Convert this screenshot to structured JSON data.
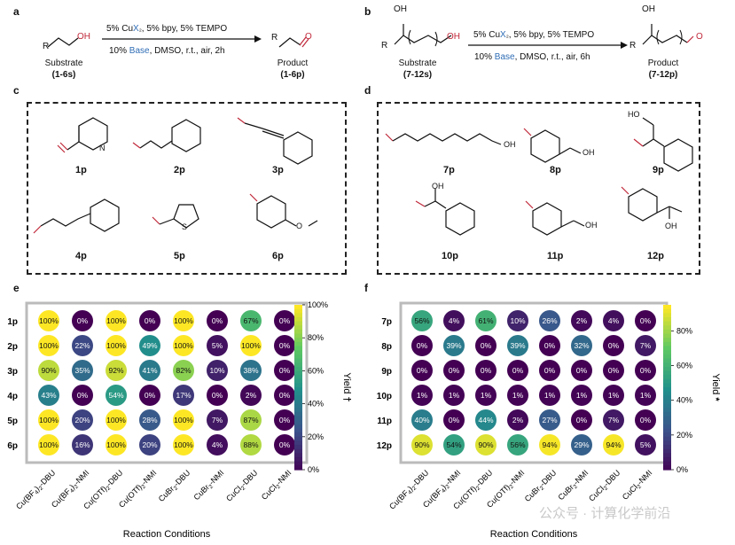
{
  "panels": {
    "a": "a",
    "b": "b",
    "c": "c",
    "d": "d",
    "e": "e",
    "f": "f"
  },
  "scheme_a": {
    "conditions_top": [
      "5% Cu",
      "X",
      "₂",
      ", 5% bpy, 5% TEMPO"
    ],
    "conditions_bottom": [
      "10% ",
      "Base",
      ", DMSO, r.t., air, 2h"
    ],
    "substrate_label": "Substrate",
    "substrate_range": "(1-6s)",
    "product_label": "Product",
    "product_range": "(1-6p)",
    "atom_R": "R",
    "atom_OH": "OH",
    "atom_O": "O"
  },
  "scheme_b": {
    "conditions_top": [
      "5% Cu",
      "X",
      "₂",
      ", 5% bpy, 5% TEMPO"
    ],
    "conditions_bottom": [
      "10% ",
      "Base",
      ", DMSO, r.t., air, 6h"
    ],
    "substrate_label": "Substrate",
    "substrate_range": "(7-12s)",
    "product_label": "Product",
    "product_range": "(7-12p)",
    "atom_R": "R",
    "atom_OH": "OH",
    "atom_O": "O"
  },
  "compounds_c": [
    "1p",
    "2p",
    "3p",
    "4p",
    "5p",
    "6p"
  ],
  "compounds_d": [
    "7p",
    "8p",
    "9p",
    "10p",
    "11p",
    "12p"
  ],
  "atoms": {
    "N": "N",
    "S": "S",
    "O": "O",
    "OH": "OH",
    "HO": "HO"
  },
  "colorscale": [
    "#440154",
    "#3b528b",
    "#21918c",
    "#5ec962",
    "#fde725"
  ],
  "chart_data": [
    {
      "type": "heatmap",
      "panel": "e",
      "rows": [
        "1p",
        "2p",
        "3p",
        "4p",
        "5p",
        "6p"
      ],
      "columns": [
        "Cu(BF4)2-DBU",
        "Cu(BF4)2-NMI",
        "Cu(OTf)2-DBU",
        "Cu(OTf)2-NMI",
        "CuBr2-DBU",
        "CuBr2-NMI",
        "CuCl2-DBU",
        "CuCl2-NMI"
      ],
      "values": [
        [
          100,
          0,
          100,
          0,
          100,
          0,
          67,
          0
        ],
        [
          100,
          22,
          100,
          49,
          100,
          5,
          100,
          0
        ],
        [
          90,
          35,
          92,
          41,
          82,
          10,
          38,
          0
        ],
        [
          43,
          0,
          54,
          0,
          17,
          0,
          2,
          0
        ],
        [
          100,
          20,
          100,
          28,
          100,
          7,
          87,
          0
        ],
        [
          100,
          16,
          100,
          20,
          100,
          4,
          88,
          0
        ]
      ],
      "xlabel": "Reaction Conditions",
      "colorbar_label": "Yield",
      "colorbar_mark": "†",
      "colorbar_range": [
        0,
        100
      ],
      "colorbar_ticks": [
        "100%",
        "80%",
        "60%",
        "40%",
        "20%",
        "0%"
      ]
    },
    {
      "type": "heatmap",
      "panel": "f",
      "rows": [
        "7p",
        "8p",
        "9p",
        "10p",
        "11p",
        "12p"
      ],
      "columns": [
        "Cu(BF4)2-DBU",
        "Cu(BF4)2-NMI",
        "Cu(OTf)2-DBU",
        "Cu(OTf)2-NMI",
        "CuBr2-DBU",
        "CuBr2-NMI",
        "CuCl2-DBU",
        "CuCl2-NMI"
      ],
      "values": [
        [
          56,
          4,
          61,
          10,
          26,
          2,
          4,
          0
        ],
        [
          0,
          39,
          0,
          39,
          0,
          32,
          0,
          7
        ],
        [
          0,
          0,
          0,
          0,
          0,
          0,
          0,
          0
        ],
        [
          1,
          1,
          1,
          1,
          1,
          1,
          1,
          1
        ],
        [
          40,
          0,
          44,
          2,
          27,
          0,
          7,
          0
        ],
        [
          90,
          54,
          90,
          56,
          94,
          29,
          94,
          5
        ]
      ],
      "xlabel": "Reaction Conditions",
      "colorbar_label": "Yield",
      "colorbar_mark": "*",
      "colorbar_range": [
        0,
        95
      ],
      "colorbar_ticks": [
        "80%",
        "60%",
        "40%",
        "20%",
        "0%"
      ]
    }
  ],
  "column_labels": [
    [
      "Cu(BF",
      "4",
      ")",
      "2",
      "-DBU"
    ],
    [
      "Cu(BF",
      "4",
      ")",
      "2",
      "-NMI"
    ],
    [
      "Cu(OTf)",
      "2",
      "-DBU",
      "",
      ""
    ],
    [
      "Cu(OTf)",
      "2",
      "-NMI",
      "",
      ""
    ],
    [
      "CuBr",
      "2",
      "-DBU",
      "",
      ""
    ],
    [
      "CuBr",
      "2",
      "-NMI",
      "",
      ""
    ],
    [
      "CuCl",
      "2",
      "-DBU",
      "",
      ""
    ],
    [
      "CuCl",
      "2",
      "-NMI",
      "",
      ""
    ]
  ],
  "watermark": "公众号 · 计算化学前沿"
}
